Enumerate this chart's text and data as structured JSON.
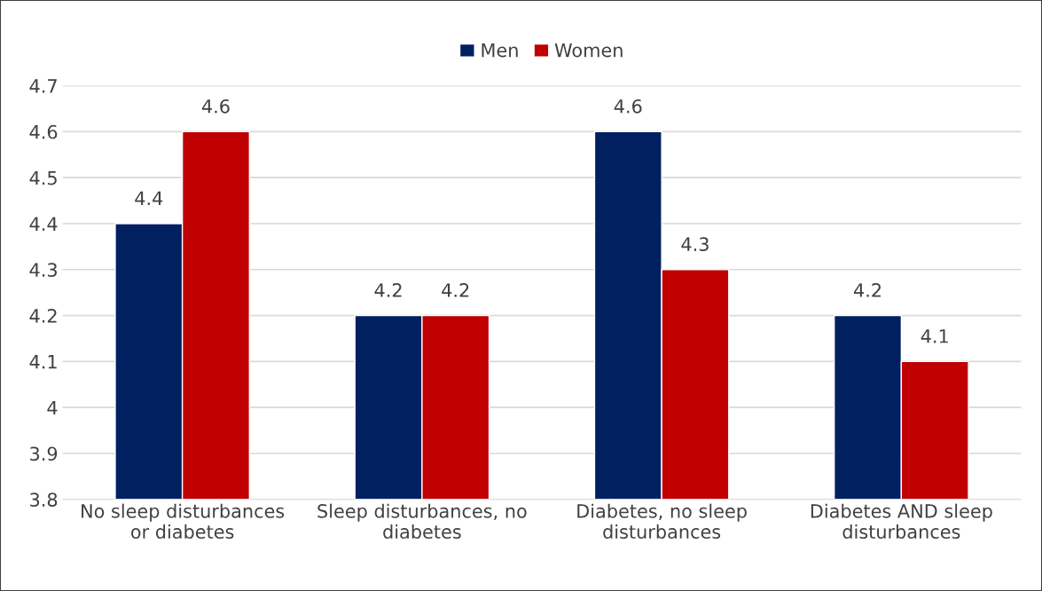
{
  "chart_data": {
    "type": "bar",
    "categories": [
      "No sleep disturbances\nor diabetes",
      "Sleep disturbances, no\ndiabetes",
      "Diabetes, no sleep\ndisturbances",
      "Diabetes AND sleep\ndisturbances"
    ],
    "series": [
      {
        "name": "Men",
        "color": "#002060",
        "values": [
          4.4,
          4.2,
          4.6,
          4.2
        ]
      },
      {
        "name": "Women",
        "color": "#c00000",
        "values": [
          4.6,
          4.2,
          4.3,
          4.1
        ]
      }
    ],
    "ylim": [
      3.8,
      4.7
    ],
    "yticks": [
      3.8,
      3.9,
      4,
      4.1,
      4.2,
      4.3,
      4.4,
      4.5,
      4.6,
      4.7
    ],
    "grid": "y",
    "legend": "top",
    "data_labels": true
  }
}
